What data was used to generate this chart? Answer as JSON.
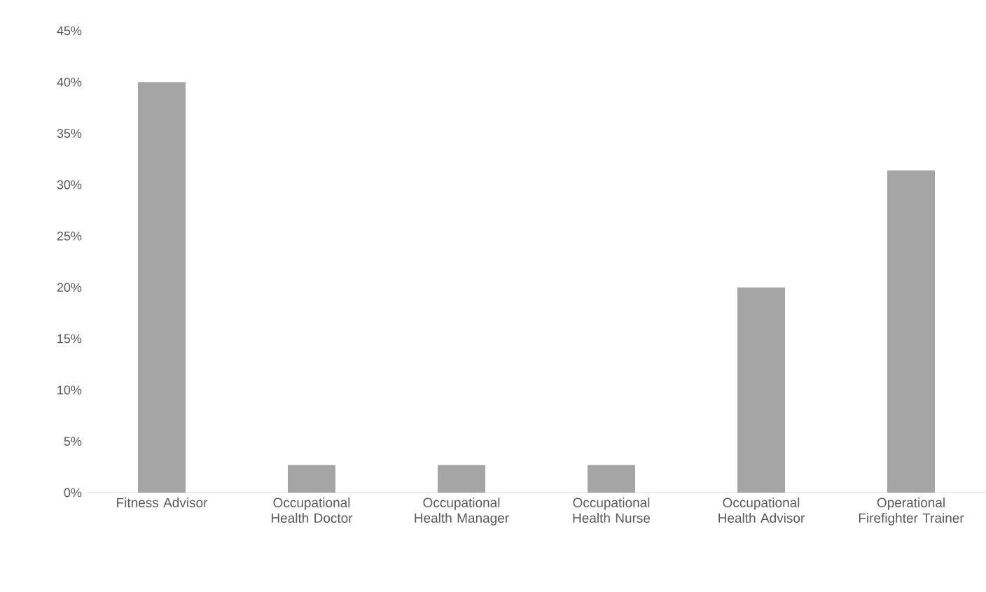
{
  "chart_data": {
    "type": "bar",
    "categories": [
      "Fitness Advisor",
      "Occupational Health Doctor",
      "Occupational Health Manager",
      "Occupational Health Nurse",
      "Occupational Health Advisor",
      "Operational Firefighter Trainer"
    ],
    "values": [
      40,
      2.7,
      2.7,
      2.7,
      20,
      31.4
    ],
    "color": "#a5a5a5",
    "ylim": [
      0,
      45
    ],
    "yticks": [
      {
        "value": 0,
        "label": "0%"
      },
      {
        "value": 5,
        "label": "5%"
      },
      {
        "value": 10,
        "label": "10%"
      },
      {
        "value": 15,
        "label": "15%"
      },
      {
        "value": 20,
        "label": "20%"
      },
      {
        "value": 25,
        "label": "25%"
      },
      {
        "value": 30,
        "label": "30%"
      },
      {
        "value": 35,
        "label": "35%"
      },
      {
        "value": 40,
        "label": "40%"
      },
      {
        "value": 45,
        "label": "45%"
      }
    ]
  }
}
